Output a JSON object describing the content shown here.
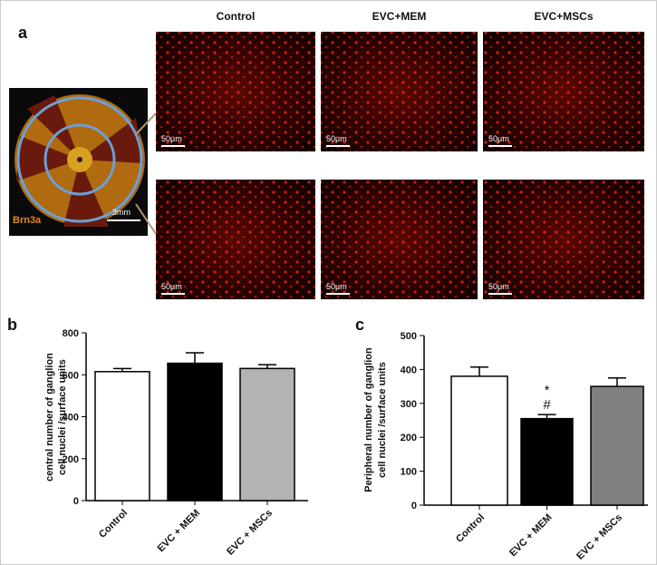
{
  "panel_labels": [
    "a",
    "b",
    "c"
  ],
  "columns": [
    "Control",
    "EVC+MEM",
    "EVC+MSCs"
  ],
  "scale_bar": "50μm",
  "retina": {
    "stain": "Brn3a",
    "scale_bar": "3mm"
  },
  "chart_data": [
    {
      "type": "bar",
      "categories": [
        "Control",
        "EVC + MEM",
        "EVC + MSCs"
      ],
      "values": [
        615,
        655,
        630
      ],
      "errors": [
        15,
        50,
        18
      ],
      "colors": [
        "#ffffff",
        "#000000",
        "#b3b3b3"
      ],
      "ylabel": [
        "central number of ganglion",
        "cell nuclei /surface units"
      ],
      "ylim": [
        0,
        800
      ],
      "yticks": [
        0,
        200,
        400,
        600,
        800
      ]
    },
    {
      "type": "bar",
      "categories": [
        "Control",
        "EVC + MEM",
        "EVC + MSCs"
      ],
      "values": [
        380,
        255,
        350
      ],
      "errors": [
        27,
        12,
        25
      ],
      "colors": [
        "#ffffff",
        "#000000",
        "#808080"
      ],
      "ylabel": [
        "Peripheral number of ganglion",
        "cell nuclei /surface units"
      ],
      "ylim": [
        0,
        500
      ],
      "yticks": [
        0,
        100,
        200,
        300,
        400,
        500
      ],
      "annotations": [
        "*",
        "#"
      ]
    }
  ]
}
